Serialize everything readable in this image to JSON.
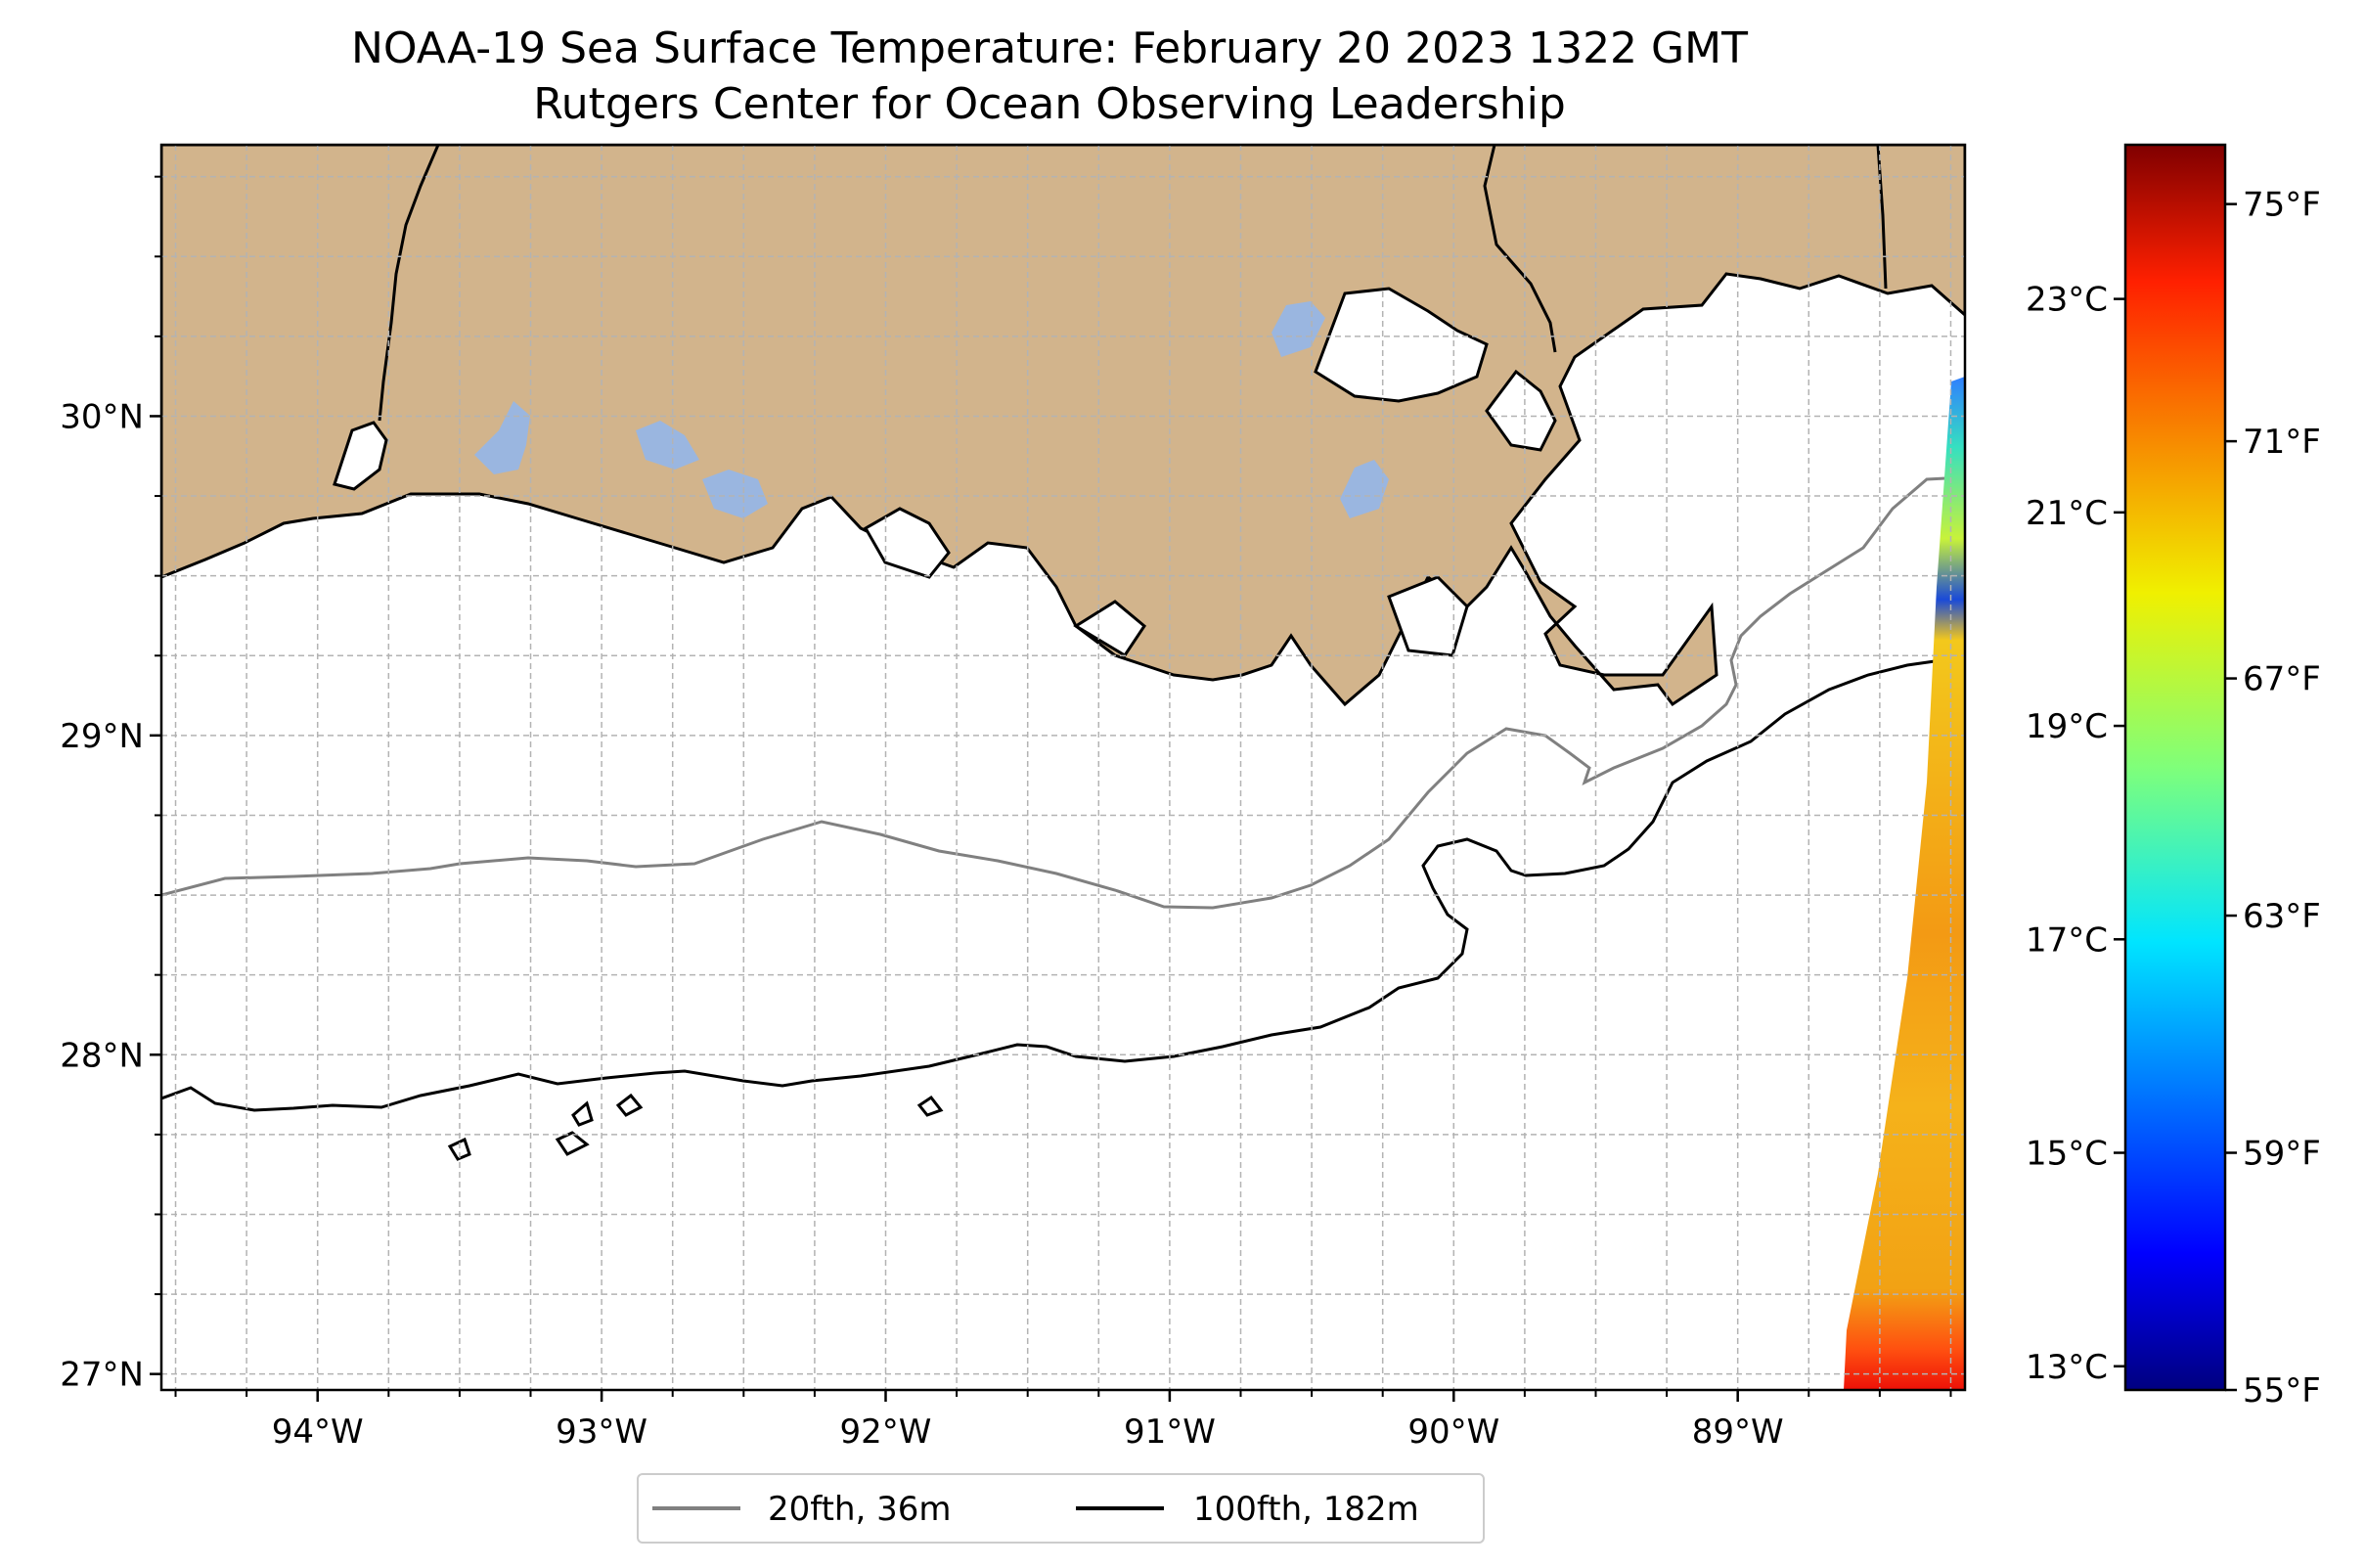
{
  "title": {
    "line1": "NOAA-19 Sea Surface Temperature: February 20 2023 1322 GMT",
    "line2": "Rutgers Center for Ocean Observing Leadership"
  },
  "map": {
    "lon_range": [
      -94.55,
      -88.2
    ],
    "lat_range": [
      26.95,
      30.85
    ],
    "x_ticks": [
      {
        "value": -94,
        "label": "94°W"
      },
      {
        "value": -93,
        "label": "93°W"
      },
      {
        "value": -92,
        "label": "92°W"
      },
      {
        "value": -91,
        "label": "91°W"
      },
      {
        "value": -90,
        "label": "90°W"
      },
      {
        "value": -89,
        "label": "89°W"
      }
    ],
    "y_ticks": [
      {
        "value": 30,
        "label": "30°N"
      },
      {
        "value": 29,
        "label": "29°N"
      },
      {
        "value": 28,
        "label": "28°N"
      },
      {
        "value": 27,
        "label": "27°N"
      }
    ],
    "gridlines": true,
    "land_color": "#d2b48c",
    "lake_color": "#9ab6e0",
    "isobath_20fth_color": "#808080",
    "isobath_100fth_color": "#000000"
  },
  "colorbar": {
    "colormap": "jet",
    "range_f": [
      55,
      76
    ],
    "celsius_ticks": [
      {
        "value": 23,
        "label": "23°C"
      },
      {
        "value": 21,
        "label": "21°C"
      },
      {
        "value": 19,
        "label": "19°C"
      },
      {
        "value": 17,
        "label": "17°C"
      },
      {
        "value": 15,
        "label": "15°C"
      },
      {
        "value": 13,
        "label": "13°C"
      }
    ],
    "fahrenheit_ticks": [
      {
        "value": 75,
        "label": "75°F"
      },
      {
        "value": 71,
        "label": "71°F"
      },
      {
        "value": 67,
        "label": "67°F"
      },
      {
        "value": 63,
        "label": "63°F"
      },
      {
        "value": 59,
        "label": "59°F"
      },
      {
        "value": 55,
        "label": "55°F"
      }
    ]
  },
  "legend": {
    "placement": "bottom-center",
    "items": [
      {
        "label": "20fth, 36m",
        "color": "#808080"
      },
      {
        "label": "100fth, 182m",
        "color": "#000000"
      }
    ]
  }
}
